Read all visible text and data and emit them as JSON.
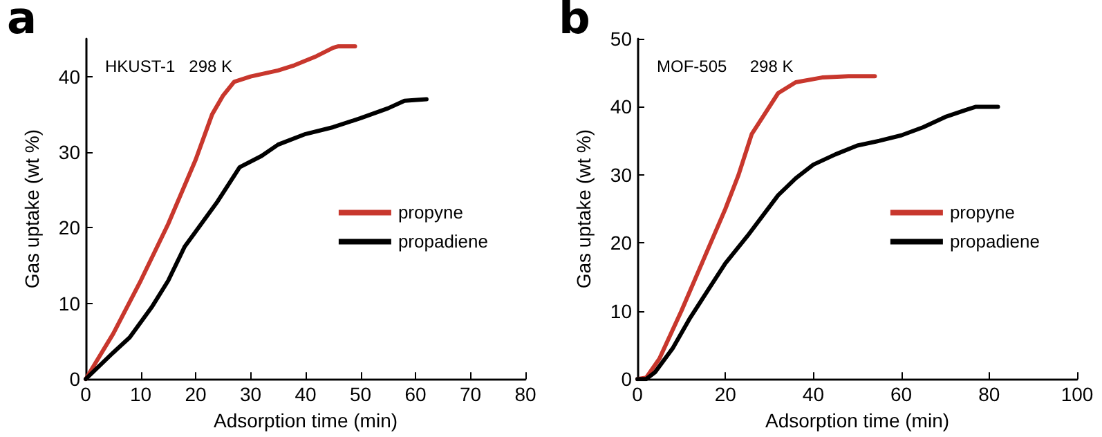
{
  "chart_data": [
    {
      "type": "line",
      "title": "a",
      "xlabel": "Adsorption time (min)",
      "ylabel": "Gas uptake (wt %)",
      "annotations": [
        "HKUST-1   298 K"
      ],
      "xlim": [
        0,
        80
      ],
      "xticks": [
        0,
        10,
        20,
        30,
        40,
        50,
        60,
        70,
        80
      ],
      "ylim": [
        0,
        45
      ],
      "yticks": [
        0,
        10,
        20,
        30,
        40
      ],
      "legend": "right",
      "marker": "none",
      "line_style": "solid",
      "grid": false,
      "series": [
        {
          "name": "propyne",
          "color": "#c8372d",
          "x": [
            0,
            5,
            10,
            15,
            20,
            23,
            25,
            27,
            30,
            35,
            38,
            42,
            45,
            46,
            49
          ],
          "values": [
            0,
            6,
            13,
            20.5,
            29,
            35,
            37.5,
            39.3,
            40,
            40.8,
            41.5,
            42.7,
            43.8,
            44,
            44
          ]
        },
        {
          "name": "propadiene",
          "color": "#000000",
          "x": [
            0,
            5,
            8,
            12,
            15,
            18,
            20,
            24,
            28,
            32,
            35,
            40,
            45,
            50,
            55,
            58,
            62
          ],
          "values": [
            0,
            3.5,
            5.5,
            9.5,
            13,
            17.5,
            19.5,
            23.5,
            28,
            29.5,
            31,
            32.4,
            33.3,
            34.5,
            35.8,
            36.8,
            37
          ]
        }
      ]
    },
    {
      "type": "line",
      "title": "b",
      "xlabel": "Adsorption time (min)",
      "ylabel": "Gas uptake (wt %)",
      "annotations": [
        "MOF-505     298 K"
      ],
      "xlim": [
        0,
        100
      ],
      "xticks": [
        0,
        20,
        40,
        60,
        80,
        100
      ],
      "ylim": [
        0,
        50
      ],
      "yticks": [
        0,
        10,
        20,
        30,
        40,
        50
      ],
      "legend": "right",
      "marker": "none",
      "line_style": "solid",
      "grid": false,
      "series": [
        {
          "name": "propyne",
          "color": "#c8372d",
          "x": [
            0,
            2,
            5,
            10,
            15,
            20,
            23,
            26,
            29,
            32,
            36,
            42,
            48,
            54
          ],
          "values": [
            0,
            0.2,
            3,
            10,
            17.5,
            25,
            30,
            36,
            39,
            42,
            43.6,
            44.3,
            44.5,
            44.5
          ]
        },
        {
          "name": "propadiene",
          "color": "#000000",
          "x": [
            0,
            2,
            4,
            8,
            12,
            16,
            20,
            25,
            32,
            36,
            40,
            45,
            50,
            55,
            60,
            65,
            70,
            75,
            77,
            82
          ],
          "values": [
            0,
            0,
            1,
            4.5,
            9,
            13,
            17,
            21,
            27,
            29.5,
            31.5,
            33,
            34.3,
            35,
            35.8,
            37,
            38.5,
            39.6,
            40,
            40
          ]
        }
      ]
    }
  ]
}
